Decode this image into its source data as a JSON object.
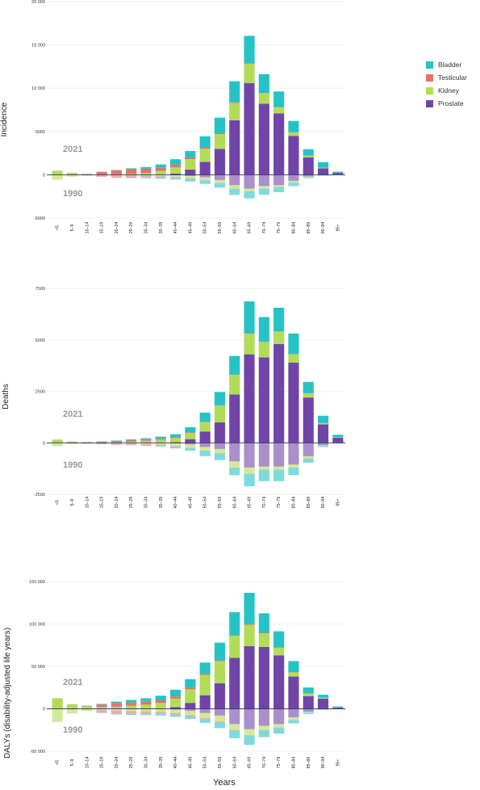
{
  "legend": [
    {
      "name": "Bladder",
      "color": "#26c3c6"
    },
    {
      "name": "Testicular",
      "color": "#e8706b"
    },
    {
      "name": "Kidney",
      "color": "#b2dc57"
    },
    {
      "name": "Prostate",
      "color": "#7145a8"
    }
  ],
  "xlabel": "Years",
  "chart_data": [
    {
      "type": "bar",
      "ylabel": "Incidence",
      "year_top": "2021",
      "year_bottom": "1990",
      "categories": [
        "<5",
        "5–9",
        "10–14",
        "15–19",
        "20–24",
        "25–29",
        "30–34",
        "35–39",
        "40–44",
        "45–49",
        "50–54",
        "55–59",
        "60–64",
        "65–69",
        "70–74",
        "75–79",
        "80–84",
        "85–89",
        "90–94",
        "95+"
      ],
      "yticks": [
        -5000,
        0,
        5000,
        10000,
        15000,
        20000
      ],
      "ytick_labels": [
        "-5000",
        "0",
        "5000",
        "10 000",
        "15 000",
        "20 000"
      ],
      "ylim": [
        -5000,
        20000
      ],
      "series_2021": [
        {
          "name": "Prostate",
          "values": [
            0,
            0,
            0,
            0,
            0,
            0,
            0,
            50,
            150,
            600,
            1500,
            3000,
            6300,
            10600,
            8200,
            7100,
            4500,
            2000,
            750,
            220
          ]
        },
        {
          "name": "Kidney",
          "values": [
            450,
            180,
            60,
            40,
            50,
            100,
            200,
            400,
            700,
            1200,
            1500,
            1700,
            2000,
            2200,
            1200,
            700,
            400,
            200,
            60,
            20
          ]
        },
        {
          "name": "Testicular",
          "values": [
            20,
            20,
            40,
            300,
            450,
            550,
            500,
            350,
            300,
            200,
            150,
            100,
            100,
            50,
            30,
            20,
            20,
            10,
            5,
            5
          ]
        },
        {
          "name": "Bladder",
          "values": [
            5,
            5,
            10,
            20,
            50,
            100,
            200,
            400,
            650,
            750,
            1300,
            1800,
            2400,
            3200,
            2200,
            1800,
            1300,
            750,
            650,
            120
          ]
        }
      ],
      "series_1990": [
        {
          "name": "Prostate",
          "values": [
            0,
            0,
            0,
            0,
            0,
            0,
            0,
            0,
            50,
            150,
            300,
            600,
            1200,
            1600,
            1300,
            1200,
            700,
            200,
            50,
            10
          ]
        },
        {
          "name": "Kidney",
          "values": [
            550,
            200,
            60,
            30,
            40,
            50,
            100,
            150,
            200,
            250,
            300,
            350,
            400,
            300,
            300,
            200,
            200,
            80,
            20,
            5
          ]
        },
        {
          "name": "Testicular",
          "values": [
            10,
            10,
            20,
            200,
            300,
            300,
            200,
            150,
            100,
            80,
            50,
            40,
            30,
            20,
            10,
            10,
            10,
            5,
            5,
            5
          ]
        },
        {
          "name": "Bladder",
          "values": [
            5,
            5,
            10,
            10,
            20,
            50,
            100,
            150,
            200,
            300,
            400,
            500,
            700,
            800,
            700,
            600,
            400,
            100,
            50,
            10
          ]
        }
      ]
    },
    {
      "type": "bar",
      "ylabel": "Deaths",
      "year_top": "2021",
      "year_bottom": "1990",
      "categories": [
        "<5",
        "5–9",
        "10–14",
        "15–19",
        "20–24",
        "25–29",
        "30–34",
        "35–39",
        "40–44",
        "45–49",
        "50–54",
        "55–59",
        "60–64",
        "65–69",
        "70–74",
        "75–79",
        "80–84",
        "85–89",
        "90–94",
        "95+"
      ],
      "yticks": [
        -2500,
        0,
        2500,
        5000,
        7500
      ],
      "ytick_labels": [
        "-2500",
        "0",
        "2500",
        "5000",
        "7500"
      ],
      "ylim": [
        -2500,
        7500
      ],
      "series_2021": [
        {
          "name": "Prostate",
          "values": [
            0,
            0,
            0,
            0,
            0,
            0,
            0,
            0,
            30,
            180,
            550,
            1000,
            2350,
            4300,
            4150,
            4800,
            3900,
            2200,
            900,
            250
          ]
        },
        {
          "name": "Kidney",
          "values": [
            150,
            50,
            20,
            15,
            25,
            60,
            100,
            150,
            200,
            300,
            450,
            800,
            950,
            1000,
            750,
            600,
            400,
            200,
            60,
            20
          ]
        },
        {
          "name": "Testicular",
          "values": [
            5,
            5,
            10,
            40,
            70,
            70,
            60,
            50,
            40,
            30,
            20,
            20,
            20,
            20,
            10,
            10,
            10,
            10,
            5,
            5
          ]
        },
        {
          "name": "Bladder",
          "values": [
            5,
            5,
            10,
            15,
            20,
            40,
            60,
            100,
            150,
            250,
            450,
            650,
            900,
            1550,
            1200,
            1150,
            1000,
            550,
            350,
            120
          ]
        }
      ],
      "series_1990": [
        {
          "name": "Prostate",
          "values": [
            0,
            0,
            0,
            0,
            0,
            0,
            0,
            0,
            30,
            80,
            200,
            300,
            900,
            1200,
            1150,
            1150,
            1050,
            650,
            120,
            10
          ]
        },
        {
          "name": "Kidney",
          "values": [
            150,
            50,
            20,
            15,
            25,
            40,
            60,
            80,
            120,
            160,
            180,
            200,
            300,
            300,
            150,
            150,
            150,
            100,
            30,
            5
          ]
        },
        {
          "name": "Testicular",
          "values": [
            5,
            5,
            10,
            40,
            60,
            60,
            50,
            40,
            30,
            20,
            20,
            20,
            20,
            10,
            10,
            10,
            10,
            10,
            5,
            5
          ]
        },
        {
          "name": "Bladder",
          "values": [
            5,
            5,
            10,
            10,
            15,
            20,
            40,
            60,
            90,
            120,
            250,
            320,
            350,
            600,
            550,
            550,
            350,
            200,
            50,
            5
          ]
        }
      ]
    },
    {
      "type": "bar",
      "ylabel": "DALYs (disability-adjusted life years)",
      "year_top": "2021",
      "year_bottom": "1990",
      "categories": [
        "<5",
        "5–9",
        "10–14",
        "15–19",
        "20–24",
        "25–29",
        "30–34",
        "35–39",
        "40–44",
        "45–49",
        "50–54",
        "55–59",
        "60–64",
        "65–69",
        "70–74",
        "75–79",
        "80–84",
        "85–89",
        "90–94",
        "95+"
      ],
      "yticks": [
        -50000,
        0,
        50000,
        100000,
        150000
      ],
      "ytick_labels": [
        "-50 000",
        "0",
        "50 000",
        "100 000",
        "150 000"
      ],
      "ylim": [
        -50000,
        150000
      ],
      "series_2021": [
        {
          "name": "Prostate",
          "values": [
            0,
            0,
            0,
            0,
            0,
            0,
            0,
            0,
            2000,
            7000,
            16000,
            30000,
            60000,
            74000,
            73000,
            63000,
            38000,
            15000,
            12000,
            1500
          ]
        },
        {
          "name": "Kidney",
          "values": [
            12000,
            5000,
            3000,
            2000,
            2500,
            3500,
            5000,
            7000,
            10000,
            16000,
            24000,
            26000,
            26000,
            25000,
            16000,
            9000,
            5000,
            3000,
            1000,
            300
          ]
        },
        {
          "name": "Testicular",
          "values": [
            300,
            300,
            500,
            3000,
            4500,
            4000,
            3500,
            3000,
            2500,
            2000,
            1500,
            1000,
            1000,
            800,
            600,
            400,
            300,
            100,
            100,
            50
          ]
        },
        {
          "name": "Bladder",
          "values": [
            100,
            100,
            300,
            800,
            1500,
            3000,
            4000,
            5500,
            8000,
            10000,
            13000,
            21000,
            27000,
            37000,
            23000,
            19000,
            13000,
            7000,
            3500,
            1000
          ]
        }
      ],
      "series_1990": [
        {
          "name": "Prostate",
          "values": [
            0,
            0,
            0,
            0,
            0,
            0,
            0,
            0,
            1000,
            2500,
            5000,
            8000,
            18000,
            24000,
            20000,
            18000,
            10000,
            3500,
            500,
            100
          ]
        },
        {
          "name": "Kidney",
          "values": [
            15000,
            5000,
            2000,
            1500,
            2000,
            2500,
            3000,
            3500,
            4000,
            5000,
            6000,
            7000,
            7000,
            7000,
            5000,
            4000,
            3000,
            1000,
            400,
            100
          ]
        },
        {
          "name": "Testicular",
          "values": [
            200,
            200,
            300,
            3000,
            4000,
            3500,
            3000,
            2500,
            2000,
            1500,
            1000,
            800,
            600,
            500,
            400,
            300,
            200,
            100,
            50,
            20
          ]
        },
        {
          "name": "Bladder",
          "values": [
            100,
            100,
            200,
            500,
            800,
            1200,
            1500,
            2000,
            2500,
            3000,
            4500,
            7000,
            9000,
            11000,
            8000,
            7000,
            4000,
            1500,
            500,
            100
          ]
        }
      ]
    }
  ]
}
